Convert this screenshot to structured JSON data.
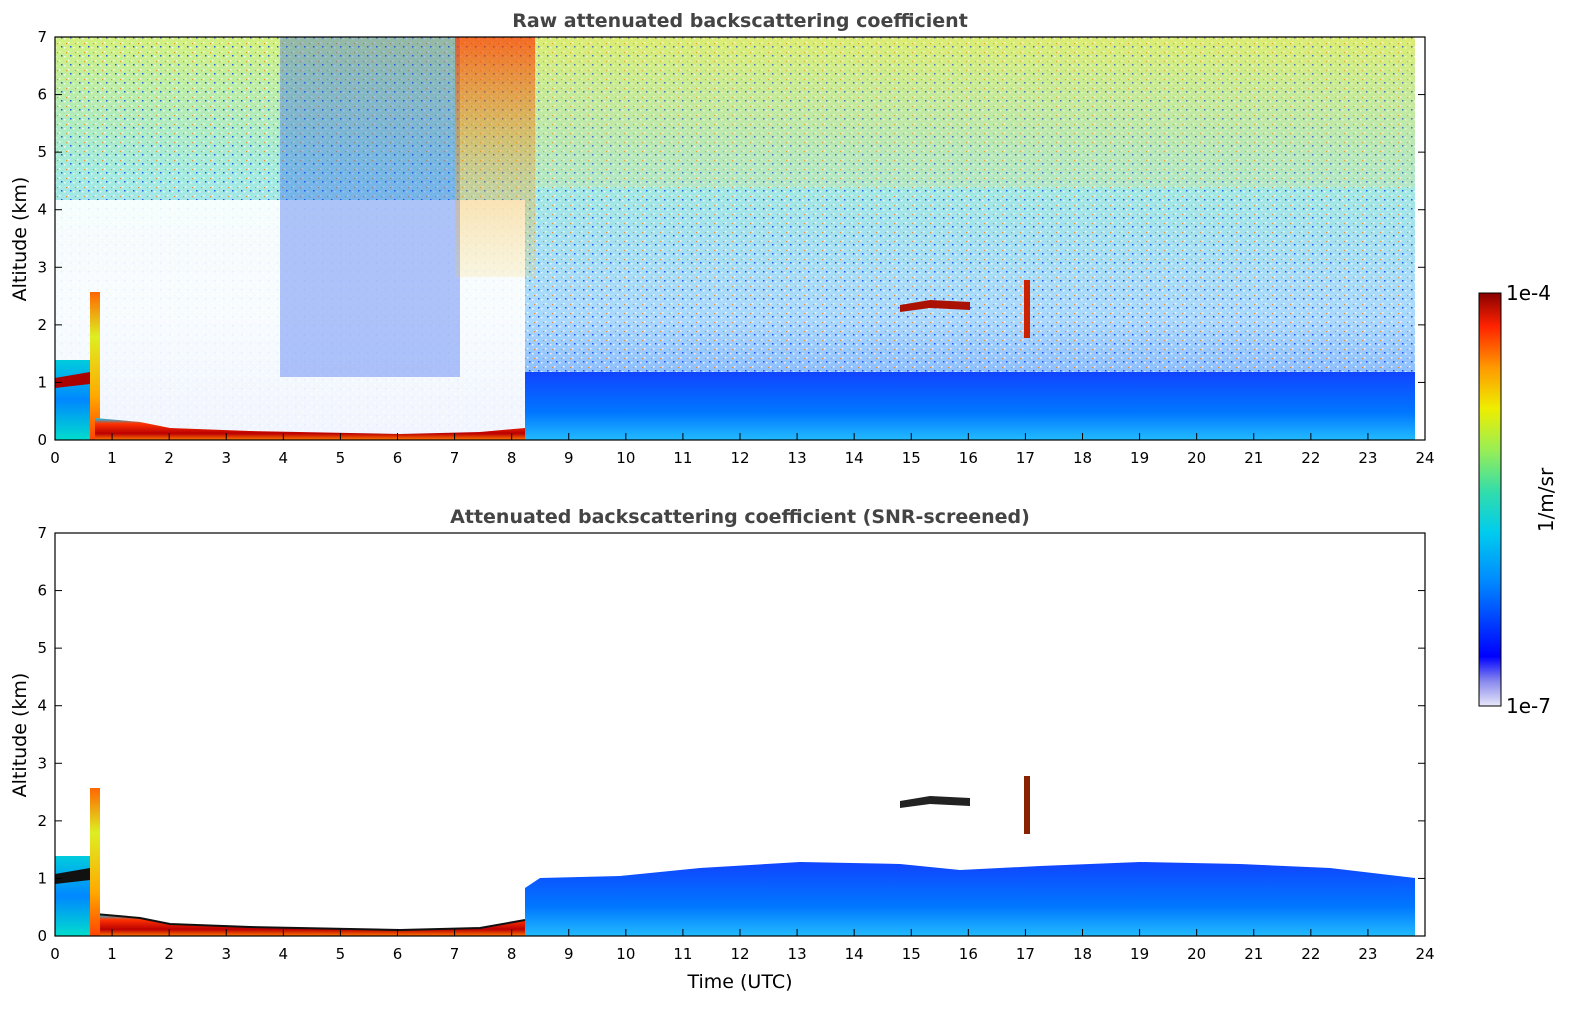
{
  "chart_data": [
    {
      "type": "heatmap",
      "title": "Raw attenuated backscattering coefficient",
      "xlabel": "",
      "ylabel": "Altitude (km)",
      "xlim": [
        0,
        24
      ],
      "ylim": [
        0,
        7
      ],
      "xticks": [
        "0",
        "1",
        "2",
        "3",
        "4",
        "5",
        "6",
        "7",
        "8",
        "9",
        "10",
        "11",
        "12",
        "13",
        "14",
        "15",
        "16",
        "17",
        "18",
        "19",
        "20",
        "21",
        "22",
        "23",
        "24"
      ],
      "yticks": [
        "0",
        "1",
        "2",
        "3",
        "4",
        "5",
        "6",
        "7"
      ],
      "features": [
        {
          "name": "surface layer 0-8.3 UTC",
          "time_start": 0,
          "time_end": 8.3,
          "top_km": 0.2,
          "level": "high"
        },
        {
          "name": "boundary layer 8.3-23.8 UTC",
          "time_start": 8.3,
          "time_end": 23.8,
          "top_km": 1.0,
          "level": "low"
        },
        {
          "name": "cloud 14.8-16.0 UTC",
          "time_start": 14.8,
          "time_end": 16.0,
          "altitude_km": 2.3,
          "level": "high"
        },
        {
          "name": "cloud 17.0 UTC",
          "time_start": 16.95,
          "time_end": 17.15,
          "altitude_km": [
            1.8,
            2.8
          ],
          "level": "high"
        },
        {
          "name": "aerosol column 0.7 UTC",
          "time_start": 0.65,
          "time_end": 0.75,
          "altitude_km": [
            0,
            2.6
          ],
          "level": "high"
        }
      ]
    },
    {
      "type": "heatmap",
      "title": "Attenuated backscattering coefficient (SNR-screened)",
      "xlabel": "Time (UTC)",
      "ylabel": "Altitude (km)",
      "xlim": [
        0,
        24
      ],
      "ylim": [
        0,
        7
      ],
      "xticks": [
        "0",
        "1",
        "2",
        "3",
        "4",
        "5",
        "6",
        "7",
        "8",
        "9",
        "10",
        "11",
        "12",
        "13",
        "14",
        "15",
        "16",
        "17",
        "18",
        "19",
        "20",
        "21",
        "22",
        "23",
        "24"
      ],
      "yticks": [
        "0",
        "1",
        "2",
        "3",
        "4",
        "5",
        "6",
        "7"
      ],
      "features": [
        {
          "name": "surface layer 0-8.3 UTC",
          "time_start": 0,
          "time_end": 8.3,
          "top_km": 0.2,
          "level": "high"
        },
        {
          "name": "boundary layer 8.3-23.8 UTC",
          "time_start": 8.3,
          "time_end": 23.8,
          "top_km": 1.1,
          "level": "low"
        },
        {
          "name": "cloud 14.8-16.0 UTC",
          "time_start": 14.8,
          "time_end": 16.0,
          "altitude_km": 2.3,
          "level": "high"
        },
        {
          "name": "cloud 17.0 UTC",
          "time_start": 16.95,
          "time_end": 17.15,
          "altitude_km": [
            1.8,
            2.8
          ],
          "level": "high"
        }
      ]
    }
  ],
  "colorbar": {
    "label": "1/m/sr",
    "max_label": "1e-4",
    "min_label": "1e-7",
    "scale": "log",
    "colors": [
      "#e8e8f8",
      "#0000ff",
      "#00aaff",
      "#22ddcc",
      "#88ee66",
      "#eeee00",
      "#ff9900",
      "#ff2200",
      "#880000"
    ]
  }
}
